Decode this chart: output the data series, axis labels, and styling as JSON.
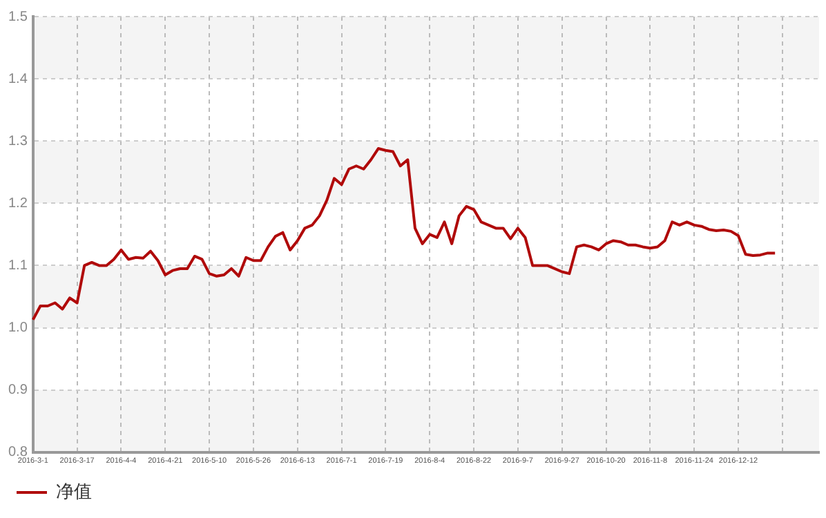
{
  "chart_data": {
    "type": "line",
    "categories": [
      "2016-3-1",
      null,
      null,
      null,
      null,
      null,
      "2016-3-17",
      null,
      null,
      null,
      null,
      null,
      "2016-4-4",
      null,
      null,
      null,
      null,
      null,
      "2016-4-21",
      null,
      null,
      null,
      null,
      null,
      "2016-5-10",
      null,
      null,
      null,
      null,
      null,
      "2016-5-26",
      null,
      null,
      null,
      null,
      null,
      "2016-6-13",
      null,
      null,
      null,
      null,
      null,
      "2016-7-1",
      null,
      null,
      null,
      null,
      null,
      "2016-7-19",
      null,
      null,
      null,
      null,
      null,
      "2016-8-4",
      null,
      null,
      null,
      null,
      null,
      "2016-8-22",
      null,
      null,
      null,
      null,
      null,
      "2016-9-7",
      null,
      null,
      null,
      null,
      null,
      "2016-9-27",
      null,
      null,
      null,
      null,
      null,
      "2016-10-20",
      null,
      null,
      null,
      null,
      null,
      "2016-11-8",
      null,
      null,
      null,
      null,
      null,
      "2016-11-24",
      null,
      null,
      null,
      null,
      null,
      "2016-12-12",
      null,
      null,
      null,
      null,
      null,
      null,
      null,
      null,
      null,
      null,
      null
    ],
    "series": [
      {
        "name": "净值",
        "color": "#b00a0a",
        "values": [
          1.013,
          1.035,
          1.035,
          1.04,
          1.03,
          1.048,
          1.04,
          1.1,
          1.105,
          1.1,
          1.1,
          1.11,
          1.125,
          1.11,
          1.113,
          1.112,
          1.123,
          1.108,
          1.085,
          1.092,
          1.095,
          1.095,
          1.115,
          1.11,
          1.087,
          1.083,
          1.085,
          1.095,
          1.083,
          1.113,
          1.108,
          1.108,
          1.13,
          1.147,
          1.153,
          1.125,
          1.14,
          1.16,
          1.165,
          1.18,
          1.205,
          1.24,
          1.23,
          1.255,
          1.26,
          1.255,
          1.27,
          1.288,
          1.285,
          1.283,
          1.26,
          1.27,
          1.16,
          1.135,
          1.15,
          1.145,
          1.17,
          1.135,
          1.18,
          1.195,
          1.19,
          1.17,
          1.165,
          1.16,
          1.16,
          1.143,
          1.16,
          1.145,
          1.1,
          1.1,
          1.1,
          1.095,
          1.09,
          1.087,
          1.13,
          1.133,
          1.13,
          1.125,
          1.135,
          1.14,
          1.138,
          1.133,
          1.133,
          1.13,
          1.128,
          1.13,
          1.14,
          1.17,
          1.165,
          1.17,
          1.165,
          1.163,
          1.158,
          1.156,
          1.157,
          1.155,
          1.148,
          1.118,
          1.116,
          1.117,
          1.12,
          1.12,
          null,
          null,
          null,
          null,
          null,
          null
        ]
      }
    ],
    "ylim": [
      0.8,
      1.5
    ],
    "yticks": [
      0.8,
      0.9,
      {
        "value": 1,
        "label": "1.0"
      },
      1.1,
      1.2,
      1.3,
      1.4,
      1.5
    ],
    "grid": true,
    "legend": "bottom left",
    "marker": "none",
    "line_style": "solid"
  }
}
